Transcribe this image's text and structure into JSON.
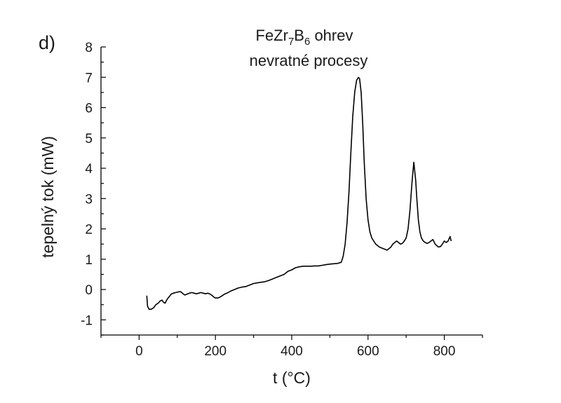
{
  "chart_data": {
    "type": "line",
    "panel_label": "d)",
    "title": {
      "line1": {
        "base": "FeZr",
        "sub1": "7",
        "mid": "B",
        "sub2": "6",
        "rest": " ohrev"
      },
      "line2": "nevratné procesy"
    },
    "xlabel": "t (°C)",
    "ylabel": "tepelný tok (mW)",
    "xlim": [
      -100,
      900
    ],
    "ylim": [
      -1.5,
      8
    ],
    "x_ticks": [
      0,
      200,
      400,
      600,
      800
    ],
    "y_ticks": [
      -1,
      0,
      1,
      2,
      3,
      4,
      5,
      6,
      7,
      8
    ],
    "grid": false,
    "series": [
      {
        "color": "#000000",
        "x": [
          20,
          22,
          26,
          32,
          38,
          44,
          50,
          55,
          60,
          64,
          68,
          72,
          76,
          80,
          84,
          90,
          96,
          102,
          108,
          112,
          116,
          120,
          126,
          132,
          138,
          144,
          150,
          156,
          162,
          168,
          174,
          180,
          186,
          192,
          196,
          200,
          206,
          212,
          218,
          224,
          230,
          240,
          250,
          260,
          270,
          280,
          290,
          300,
          310,
          320,
          330,
          340,
          350,
          360,
          370,
          380,
          390,
          400,
          410,
          420,
          430,
          440,
          450,
          460,
          470,
          480,
          490,
          500,
          510,
          520,
          530,
          535,
          540,
          545,
          550,
          555,
          560,
          565,
          570,
          575,
          578,
          582,
          586,
          590,
          595,
          600,
          605,
          610,
          620,
          630,
          640,
          650,
          655,
          660,
          665,
          670,
          675,
          680,
          685,
          690,
          695,
          700,
          705,
          710,
          715,
          720,
          725,
          728,
          732,
          736,
          740,
          745,
          750,
          755,
          760,
          765,
          770,
          772,
          776,
          780,
          785,
          790,
          795,
          800,
          805,
          810,
          815,
          818
        ],
        "y": [
          -0.2,
          -0.55,
          -0.65,
          -0.65,
          -0.6,
          -0.5,
          -0.45,
          -0.38,
          -0.35,
          -0.42,
          -0.45,
          -0.35,
          -0.28,
          -0.22,
          -0.15,
          -0.12,
          -0.1,
          -0.08,
          -0.07,
          -0.1,
          -0.15,
          -0.18,
          -0.15,
          -0.12,
          -0.1,
          -0.12,
          -0.14,
          -0.12,
          -0.1,
          -0.12,
          -0.14,
          -0.12,
          -0.15,
          -0.2,
          -0.25,
          -0.28,
          -0.28,
          -0.25,
          -0.2,
          -0.15,
          -0.12,
          -0.05,
          0.0,
          0.05,
          0.08,
          0.1,
          0.15,
          0.2,
          0.22,
          0.24,
          0.26,
          0.3,
          0.35,
          0.4,
          0.45,
          0.5,
          0.6,
          0.65,
          0.72,
          0.75,
          0.77,
          0.77,
          0.77,
          0.78,
          0.78,
          0.8,
          0.82,
          0.84,
          0.85,
          0.86,
          0.9,
          1.1,
          1.5,
          2.2,
          3.2,
          4.5,
          5.7,
          6.5,
          6.9,
          7.0,
          6.95,
          6.5,
          5.5,
          4.2,
          3.0,
          2.3,
          1.9,
          1.7,
          1.5,
          1.4,
          1.35,
          1.3,
          1.35,
          1.4,
          1.5,
          1.55,
          1.6,
          1.55,
          1.5,
          1.52,
          1.6,
          1.7,
          2.0,
          2.6,
          3.5,
          4.2,
          3.6,
          3.0,
          2.3,
          1.9,
          1.7,
          1.6,
          1.55,
          1.52,
          1.55,
          1.6,
          1.65,
          1.6,
          1.5,
          1.45,
          1.4,
          1.42,
          1.5,
          1.6,
          1.55,
          1.6,
          1.75,
          1.6
        ]
      }
    ]
  }
}
